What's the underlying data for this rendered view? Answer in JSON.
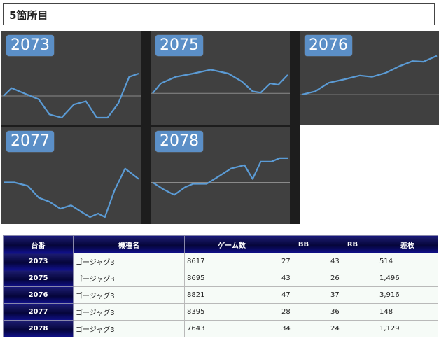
{
  "header": {
    "title": "5箇所目"
  },
  "colors": {
    "panel_bg": "#404040",
    "line": "#5b9bd5",
    "badge": "#5b8fc7",
    "header_navy": "#05053a"
  },
  "charts": [
    {
      "label": "2073",
      "points": [
        [
          0,
          0.67
        ],
        [
          0.06,
          0.55
        ],
        [
          0.14,
          0.62
        ],
        [
          0.26,
          0.72
        ],
        [
          0.34,
          0.95
        ],
        [
          0.43,
          1.0
        ],
        [
          0.52,
          0.8
        ],
        [
          0.61,
          0.75
        ],
        [
          0.69,
          1.0
        ],
        [
          0.77,
          1.0
        ],
        [
          0.85,
          0.78
        ],
        [
          0.93,
          0.38
        ],
        [
          1.0,
          0.33
        ]
      ],
      "baseline": 0.67
    },
    {
      "label": "2075",
      "points": [
        [
          0,
          0.63
        ],
        [
          0.06,
          0.48
        ],
        [
          0.17,
          0.38
        ],
        [
          0.3,
          0.33
        ],
        [
          0.43,
          0.27
        ],
        [
          0.56,
          0.33
        ],
        [
          0.66,
          0.45
        ],
        [
          0.74,
          0.6
        ],
        [
          0.8,
          0.62
        ],
        [
          0.87,
          0.48
        ],
        [
          0.93,
          0.5
        ],
        [
          1.0,
          0.35
        ]
      ],
      "baseline": 0.63
    },
    {
      "label": "2076",
      "points": [
        [
          0,
          0.65
        ],
        [
          0.1,
          0.6
        ],
        [
          0.2,
          0.47
        ],
        [
          0.31,
          0.42
        ],
        [
          0.43,
          0.36
        ],
        [
          0.52,
          0.38
        ],
        [
          0.62,
          0.32
        ],
        [
          0.72,
          0.22
        ],
        [
          0.82,
          0.14
        ],
        [
          0.9,
          0.15
        ],
        [
          1.0,
          0.06
        ]
      ],
      "baseline": 0.65
    },
    {
      "label": "2077",
      "points": [
        [
          0,
          0.5
        ],
        [
          0.08,
          0.5
        ],
        [
          0.18,
          0.55
        ],
        [
          0.26,
          0.72
        ],
        [
          0.34,
          0.78
        ],
        [
          0.42,
          0.88
        ],
        [
          0.5,
          0.83
        ],
        [
          0.58,
          0.93
        ],
        [
          0.64,
          1.0
        ],
        [
          0.7,
          0.95
        ],
        [
          0.75,
          1.0
        ],
        [
          0.82,
          0.62
        ],
        [
          0.9,
          0.3
        ],
        [
          1.0,
          0.45
        ]
      ],
      "baseline": 0.48
    },
    {
      "label": "2078",
      "points": [
        [
          0,
          0.5
        ],
        [
          0.08,
          0.6
        ],
        [
          0.16,
          0.68
        ],
        [
          0.24,
          0.57
        ],
        [
          0.3,
          0.52
        ],
        [
          0.4,
          0.52
        ],
        [
          0.5,
          0.4
        ],
        [
          0.58,
          0.3
        ],
        [
          0.68,
          0.25
        ],
        [
          0.74,
          0.45
        ],
        [
          0.8,
          0.2
        ],
        [
          0.88,
          0.2
        ],
        [
          0.94,
          0.15
        ],
        [
          1.0,
          0.15
        ]
      ],
      "baseline": 0.5
    }
  ],
  "table": {
    "headers": [
      "台番",
      "機種名",
      "ゲーム数",
      "BB",
      "RB",
      "差枚"
    ],
    "rows": [
      [
        "2073",
        "ゴージャグ3",
        "8617",
        "27",
        "43",
        "514"
      ],
      [
        "2075",
        "ゴージャグ3",
        "8695",
        "43",
        "26",
        "1,496"
      ],
      [
        "2076",
        "ゴージャグ3",
        "8821",
        "47",
        "37",
        "3,916"
      ],
      [
        "2077",
        "ゴージャグ3",
        "8395",
        "28",
        "36",
        "148"
      ],
      [
        "2078",
        "ゴージャグ3",
        "7643",
        "34",
        "24",
        "1,129"
      ]
    ]
  }
}
